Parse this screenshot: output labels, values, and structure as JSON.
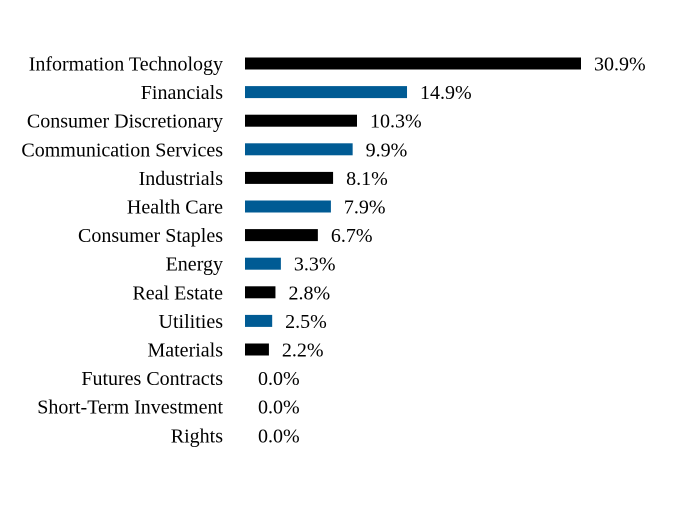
{
  "chart_data": {
    "type": "bar",
    "orientation": "horizontal",
    "categories": [
      "Information Technology",
      "Financials",
      "Consumer Discretionary",
      "Communication Services",
      "Industrials",
      "Health Care",
      "Consumer Staples",
      "Energy",
      "Real Estate",
      "Utilities",
      "Materials",
      "Futures Contracts",
      "Short-Term Investment",
      "Rights"
    ],
    "values": [
      30.9,
      14.9,
      10.3,
      9.9,
      8.1,
      7.9,
      6.7,
      3.3,
      2.8,
      2.5,
      2.2,
      0.0,
      0.0,
      0.0
    ],
    "value_labels": [
      "30.9%",
      "14.9%",
      "10.3%",
      "9.9%",
      "8.1%",
      "7.9%",
      "6.7%",
      "3.3%",
      "2.8%",
      "2.5%",
      "2.2%",
      "0.0%",
      "0.0%",
      "0.0%"
    ],
    "colors": [
      "#000000",
      "#005b94"
    ],
    "title": "",
    "xlabel": "",
    "ylabel": "",
    "xlim": [
      0,
      30.9
    ],
    "grid": false,
    "legend": "none"
  }
}
